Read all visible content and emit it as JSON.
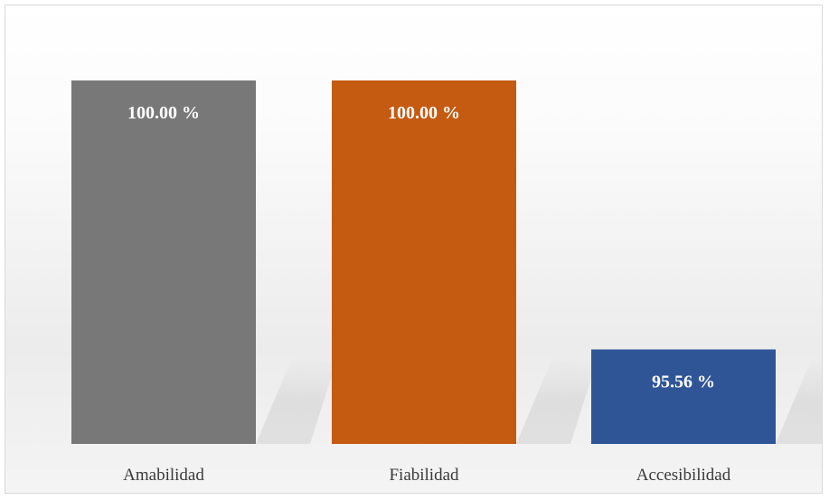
{
  "chart_data": {
    "type": "bar",
    "title": "",
    "xlabel": "",
    "ylabel": "",
    "categories": [
      "Amabilidad",
      "Fiabilidad",
      "Accesibilidad"
    ],
    "values": [
      100.0,
      100.0,
      95.56
    ],
    "value_labels": [
      "100.00 %",
      "100.00 %",
      "95.56 %"
    ],
    "colors": [
      "#787878",
      "#c55a11",
      "#2f5597"
    ],
    "ylim": [
      94.0,
      100.0
    ],
    "grid": false,
    "legend": "none"
  }
}
